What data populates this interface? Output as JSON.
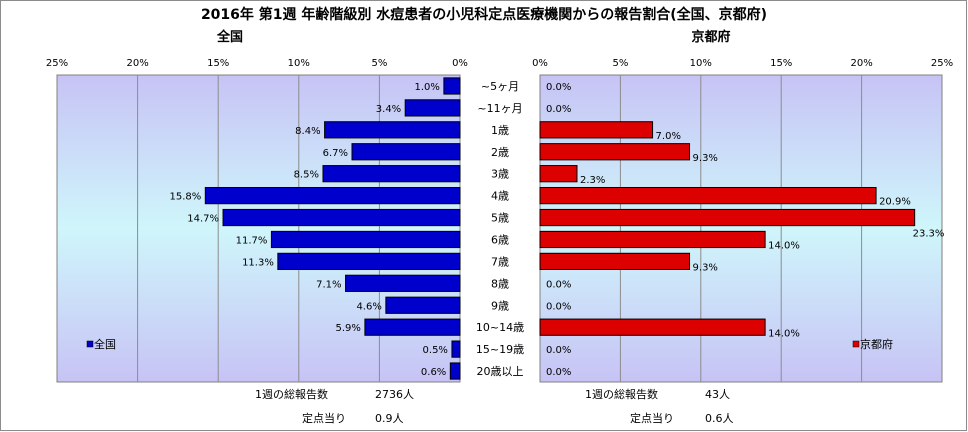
{
  "title": "2016年 第1週 年齢階級別 水痘患者の小児科定点医療機関からの報告割合(全国、京都府)",
  "chart_data": {
    "type": "bar",
    "orientation": "horizontal",
    "categories": [
      "~5ヶ月",
      "~11ヶ月",
      "1歳",
      "2歳",
      "3歳",
      "4歳",
      "5歳",
      "6歳",
      "7歳",
      "8歳",
      "9歳",
      "10~14歳",
      "15~19歳",
      "20歳以上"
    ],
    "xlim": [
      0,
      25
    ],
    "ticks": [
      "0%",
      "5%",
      "10%",
      "15%",
      "20%",
      "25%"
    ],
    "grid": true,
    "series": [
      {
        "name": "全国",
        "side": "left",
        "color": "#0000cc",
        "values": [
          1.0,
          3.4,
          8.4,
          6.7,
          8.5,
          15.8,
          14.7,
          11.7,
          11.3,
          7.1,
          4.6,
          5.9,
          0.5,
          0.6
        ],
        "labels": [
          "1.0%",
          "3.4%",
          "8.4%",
          "6.7%",
          "8.5%",
          "15.8%",
          "14.7%",
          "11.7%",
          "11.3%",
          "7.1%",
          "4.6%",
          "5.9%",
          "0.5%",
          "0.6%"
        ],
        "legend_position": "bottom-left"
      },
      {
        "name": "京都府",
        "side": "right",
        "color": "#dd0000",
        "values": [
          0.0,
          0.0,
          7.0,
          9.3,
          2.3,
          20.9,
          23.3,
          14.0,
          9.3,
          0.0,
          0.0,
          14.0,
          0.0,
          0.0
        ],
        "labels": [
          "0.0%",
          "0.0%",
          "7.0%",
          "9.3%",
          "2.3%",
          "20.9%",
          "23.3%",
          "14.0%",
          "9.3%",
          "0.0%",
          "0.0%",
          "14.0%",
          "0.0%",
          "0.0%"
        ],
        "legend_position": "bottom-right"
      }
    ]
  },
  "footer": {
    "national": {
      "total_label": "1週の総報告数",
      "total_value": "2736人",
      "per_label": "定点当り",
      "per_value": "0.9人"
    },
    "kyoto": {
      "total_label": "1週の総報告数",
      "total_value": "43人",
      "per_label": "定点当り",
      "per_value": "0.6人"
    }
  }
}
